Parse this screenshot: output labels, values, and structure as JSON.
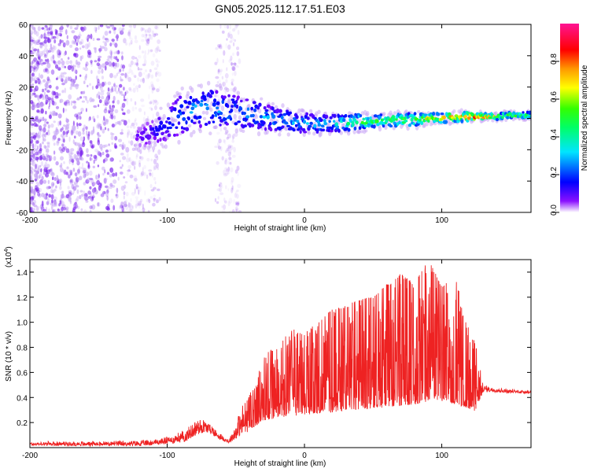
{
  "title": "GN05.2025.112.17.51.E03",
  "colors": {
    "snr_line": "#ee2222",
    "colormap": [
      "#ffffff",
      "#7a00ff",
      "#0000ff",
      "#00e5ff",
      "#00ff00",
      "#ffff00",
      "#ff8800",
      "#ff0000",
      "#ff1493"
    ]
  },
  "chart_data": [
    {
      "type": "heatmap",
      "title": "GN05.2025.112.17.51.E03",
      "xlabel": "Height of straight line (km)",
      "ylabel": "Frequency (Hz)",
      "xlim": [
        -200,
        165
      ],
      "ylim": [
        -60,
        60
      ],
      "x_ticks": [
        -200,
        -100,
        0,
        100
      ],
      "y_ticks": [
        -60,
        -40,
        -20,
        0,
        20,
        40,
        60
      ],
      "grid": false,
      "colorbar": {
        "label": "Normalized spectral amplitude",
        "range": [
          0,
          1
        ],
        "ticks": [
          0.0,
          0.2,
          0.4,
          0.6,
          0.8
        ],
        "tick_labels": [
          "0.0",
          "0.2",
          "0.4",
          "0.6",
          "0.8"
        ]
      },
      "ridge": {
        "x": [
          -120,
          -110,
          -100,
          -90,
          -80,
          -70,
          -60,
          -50,
          -40,
          -30,
          -20,
          -10,
          0,
          10,
          20,
          30,
          40,
          50,
          60,
          70,
          80,
          90,
          100,
          110,
          120,
          130,
          140,
          150,
          165
        ],
        "center_hz": [
          -12,
          -8,
          -4,
          2,
          6,
          7,
          5,
          4,
          3,
          1,
          -1,
          -2,
          -3,
          -4,
          -3,
          -3,
          -2,
          -2,
          -1,
          -1,
          -1,
          0,
          0,
          1,
          1,
          1,
          1,
          2,
          2
        ],
        "halfwidth_hz": [
          6,
          8,
          10,
          12,
          12,
          12,
          11,
          10,
          9,
          8,
          7,
          7,
          6,
          6,
          5,
          5,
          5,
          4,
          4,
          4,
          4,
          3,
          3,
          3,
          3,
          2,
          2,
          2,
          2
        ],
        "peak_amplitude": [
          0.1,
          0.15,
          0.2,
          0.25,
          0.3,
          0.3,
          0.3,
          0.28,
          0.3,
          0.3,
          0.3,
          0.3,
          0.3,
          0.32,
          0.35,
          0.45,
          0.55,
          0.55,
          0.55,
          0.6,
          0.65,
          0.7,
          0.75,
          0.85,
          0.9,
          0.92,
          0.7,
          0.6,
          0.5
        ]
      },
      "noise_region_x": [
        -200,
        -110
      ]
    },
    {
      "type": "line",
      "xlabel": "Height of straight line (km)",
      "ylabel": "SNR (10 * v/v)",
      "y_scale_label": "(x10",
      "y_scale_exp": "4",
      "y_scale_close": ")",
      "xlim": [
        -200,
        165
      ],
      "ylim": [
        0,
        1.5
      ],
      "x_ticks": [
        -200,
        -100,
        0,
        100
      ],
      "y_ticks": [
        0.2,
        0.4,
        0.6,
        0.8,
        1.0,
        1.2,
        1.4
      ],
      "grid": false,
      "series": [
        {
          "envelope": {
            "x": [
              -200,
              -120,
              -105,
              -95,
              -85,
              -80,
              -75,
              -70,
              -65,
              -60,
              -55,
              -45,
              -35,
              -30,
              -20,
              -10,
              0,
              10,
              20,
              30,
              40,
              50,
              60,
              65,
              70,
              80,
              90,
              100,
              110,
              118,
              125,
              130,
              140,
              150,
              165
            ],
            "base": [
              0.02,
              0.02,
              0.03,
              0.04,
              0.06,
              0.1,
              0.12,
              0.13,
              0.09,
              0.06,
              0.04,
              0.1,
              0.18,
              0.22,
              0.24,
              0.26,
              0.27,
              0.28,
              0.29,
              0.3,
              0.31,
              0.32,
              0.33,
              0.33,
              0.33,
              0.35,
              0.37,
              0.38,
              0.35,
              0.32,
              0.3,
              0.45,
              0.45,
              0.44,
              0.44
            ],
            "peak": [
              0.04,
              0.05,
              0.07,
              0.1,
              0.15,
              0.22,
              0.24,
              0.2,
              0.15,
              0.1,
              0.06,
              0.35,
              0.5,
              0.75,
              0.78,
              0.95,
              0.9,
              1.0,
              1.1,
              1.12,
              1.18,
              1.2,
              1.3,
              1.32,
              1.38,
              1.3,
              1.5,
              1.28,
              1.35,
              1.0,
              0.8,
              0.5,
              0.47,
              0.46,
              0.45
            ]
          }
        }
      ]
    }
  ]
}
